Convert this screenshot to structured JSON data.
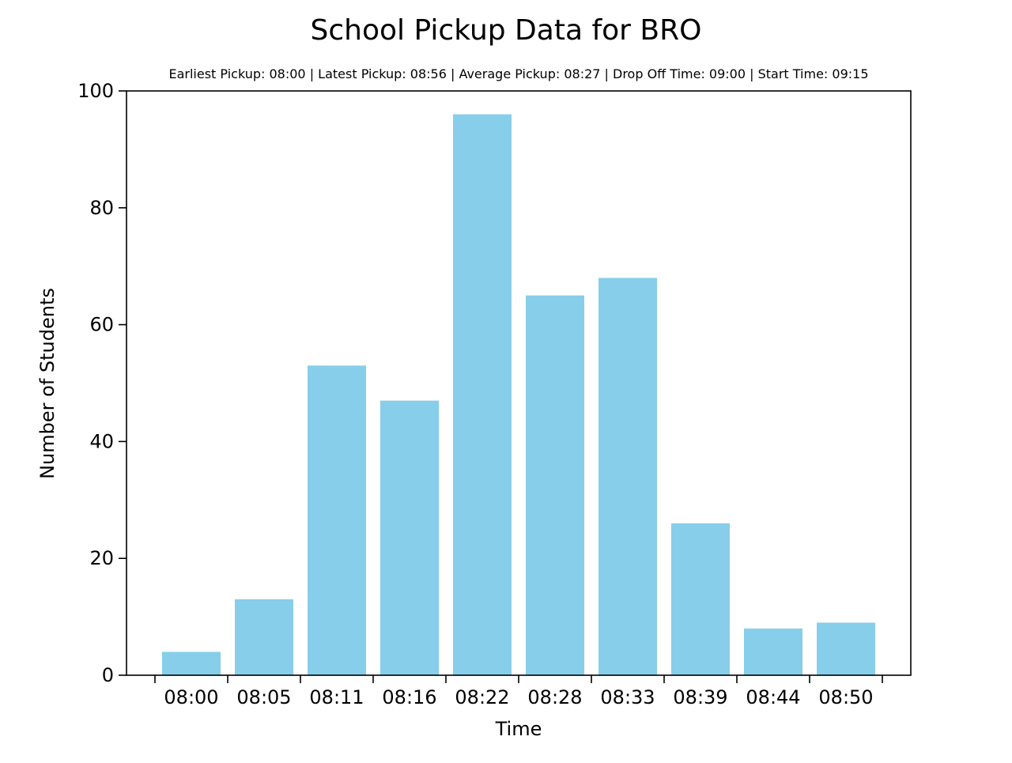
{
  "chart_data": {
    "type": "bar",
    "title": "School Pickup Data for BRO",
    "subtitle": "Earliest Pickup: 08:00 | Latest Pickup: 08:56 | Average Pickup: 08:27 | Drop Off Time: 09:00 | Start Time: 09:15",
    "xlabel": "Time",
    "ylabel": "Number of Students",
    "ylim": [
      0,
      100
    ],
    "yticks": [
      0,
      20,
      40,
      60,
      80,
      100
    ],
    "x_tick_labels": [
      "08:00",
      "08:05",
      "08:11",
      "08:16",
      "08:22",
      "08:28",
      "08:33",
      "08:39",
      "08:44",
      "08:50"
    ],
    "values": [
      4,
      13,
      53,
      47,
      96,
      65,
      68,
      26,
      8,
      9
    ],
    "bar_color": "#87CEEB",
    "grid": false,
    "legend": "none"
  }
}
